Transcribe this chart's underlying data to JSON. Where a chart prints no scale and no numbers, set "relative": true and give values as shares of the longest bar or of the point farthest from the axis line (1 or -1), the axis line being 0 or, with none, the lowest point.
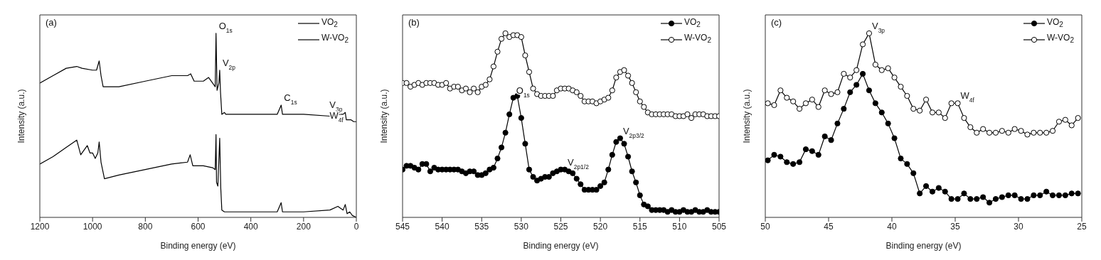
{
  "chart_data": [
    {
      "type": "line",
      "relative": true,
      "marker": "none",
      "legend": "top right",
      "xlabel": "Binding energy (eV)",
      "ylabel": "Intensity (a.u.)",
      "xlim": [
        1200,
        0
      ],
      "xticks": [
        1200,
        1000,
        800,
        600,
        400,
        200,
        0
      ],
      "annotations": [
        "(a)",
        {
          "text": "O$_{1s}$",
          "x": 532,
          "y": 1
        },
        {
          "text": "V$_{2p}$",
          "x": 518,
          "y": 0.8
        },
        {
          "text": "C$_{1s}$",
          "x": 285,
          "y": 0.61
        },
        {
          "text": "V$_{3p}$",
          "x": 42,
          "y": 0.57
        },
        {
          "text": "W$_{4f}$",
          "x": 38,
          "y": 0.53
        }
      ],
      "series": [
        {
          "name": "VO$_{2}$",
          "color": "#000000",
          "x": [
            1200,
            1150,
            1100,
            1060,
            1045,
            1020,
            1010,
            1000,
            990,
            980,
            975,
            968,
            955,
            900,
            800,
            700,
            640,
            630,
            620,
            580,
            545,
            535,
            532,
            530,
            525,
            518,
            514,
            510,
            500,
            400,
            300,
            285,
            280,
            200,
            100,
            70,
            50,
            42,
            35,
            25,
            15,
            0
          ],
          "values": [
            0.29,
            0.33,
            0.38,
            0.42,
            0.34,
            0.39,
            0.35,
            0.35,
            0.32,
            0.35,
            0.41,
            0.3,
            0.21,
            0.23,
            0.26,
            0.29,
            0.3,
            0.34,
            0.28,
            0.28,
            0.27,
            0.26,
            0.45,
            0.19,
            0.17,
            0.43,
            0.16,
            0.04,
            0.03,
            0.03,
            0.03,
            0.08,
            0.03,
            0.03,
            0.04,
            0.06,
            0.04,
            0.07,
            0.02,
            0.03,
            0.01,
            0.0
          ]
        },
        {
          "name": "W-VO$_{2}$",
          "color": "#000000",
          "x": [
            1200,
            1150,
            1100,
            1060,
            1040,
            1000,
            985,
            975,
            968,
            960,
            900,
            800,
            700,
            640,
            628,
            615,
            580,
            560,
            545,
            535,
            532,
            528,
            521,
            518,
            515,
            510,
            500,
            495,
            400,
            300,
            285,
            280,
            200,
            100,
            70,
            50,
            42,
            38,
            30,
            20,
            10,
            0
          ],
          "values": [
            0.73,
            0.77,
            0.81,
            0.82,
            0.81,
            0.8,
            0.8,
            0.85,
            0.77,
            0.71,
            0.71,
            0.74,
            0.77,
            0.77,
            0.78,
            0.74,
            0.74,
            0.76,
            0.73,
            0.71,
            1,
            0.69,
            0.73,
            0.8,
            0.68,
            0.56,
            0.57,
            0.56,
            0.56,
            0.56,
            0.61,
            0.56,
            0.56,
            0.55,
            0.56,
            0.56,
            0.57,
            0.53,
            0.53,
            0.53,
            0.52,
            0.52
          ]
        }
      ]
    },
    {
      "type": "line",
      "relative": true,
      "marker": "circle",
      "legend": "top right",
      "xlabel": "Binding energy (eV)",
      "ylabel": "Intensity (a.u.)",
      "xlim": [
        545,
        505
      ],
      "xticks": [
        545,
        540,
        535,
        530,
        525,
        520,
        515,
        510,
        505
      ],
      "annotations": [
        "(b)",
        {
          "text": "O$_{1s}$",
          "x": 531,
          "y": 0.65
        },
        {
          "text": "V$_{2p1/2}$",
          "x": 524.5,
          "y": 0.26
        },
        {
          "text": "V$_{2p3/2}$",
          "x": 517.5,
          "y": 0.43
        }
      ],
      "x": [
        545,
        544.5,
        544,
        543.5,
        543,
        542.5,
        542,
        541.5,
        541,
        540.5,
        540,
        539.5,
        539,
        538.5,
        538,
        537.5,
        537,
        536.5,
        536,
        535.5,
        535,
        534.5,
        534,
        533.5,
        533,
        532.5,
        532,
        531.5,
        531,
        530.5,
        530,
        529.5,
        529,
        528.5,
        528,
        527.5,
        527,
        526.5,
        526,
        525.5,
        525,
        524.5,
        524,
        523.5,
        523,
        522.5,
        522,
        521.5,
        521,
        520.5,
        520,
        519.5,
        519,
        518.5,
        518,
        517.5,
        517,
        516.5,
        516,
        515.5,
        515,
        514.5,
        514,
        513.5,
        513,
        512.5,
        512,
        511.5,
        511,
        510.5,
        510,
        509.5,
        509,
        508.5,
        508,
        507.5,
        507,
        506.5,
        506,
        505.5,
        505
      ],
      "series": [
        {
          "name": "VO$_{2}$",
          "color": "#000000",
          "values": [
            0.26,
            0.28,
            0.28,
            0.27,
            0.26,
            0.29,
            0.29,
            0.25,
            0.27,
            0.26,
            0.26,
            0.26,
            0.26,
            0.26,
            0.26,
            0.25,
            0.24,
            0.25,
            0.25,
            0.23,
            0.23,
            0.24,
            0.26,
            0.27,
            0.32,
            0.38,
            0.46,
            0.56,
            0.65,
            0.66,
            0.54,
            0.4,
            0.26,
            0.22,
            0.2,
            0.21,
            0.22,
            0.22,
            0.24,
            0.25,
            0.26,
            0.26,
            0.25,
            0.24,
            0.21,
            0.18,
            0.15,
            0.15,
            0.15,
            0.15,
            0.17,
            0.19,
            0.26,
            0.34,
            0.41,
            0.43,
            0.4,
            0.33,
            0.25,
            0.19,
            0.12,
            0.07,
            0.06,
            0.04,
            0.04,
            0.04,
            0.04,
            0.03,
            0.04,
            0.03,
            0.03,
            0.04,
            0.03,
            0.03,
            0.04,
            0.03,
            0.03,
            0.04,
            0.03,
            0.03,
            0.03
          ]
        },
        {
          "name": "W-VO$_{2}$",
          "color": "#000000",
          "values": [
            0.73,
            0.73,
            0.71,
            0.72,
            0.73,
            0.72,
            0.73,
            0.73,
            0.73,
            0.72,
            0.72,
            0.73,
            0.7,
            0.71,
            0.71,
            0.69,
            0.7,
            0.68,
            0.7,
            0.68,
            0.71,
            0.72,
            0.75,
            0.82,
            0.9,
            0.97,
            1,
            0.98,
            0.99,
            0.99,
            0.98,
            0.88,
            0.79,
            0.7,
            0.67,
            0.66,
            0.66,
            0.66,
            0.66,
            0.69,
            0.7,
            0.7,
            0.7,
            0.69,
            0.68,
            0.66,
            0.63,
            0.63,
            0.63,
            0.62,
            0.63,
            0.64,
            0.65,
            0.69,
            0.76,
            0.79,
            0.8,
            0.77,
            0.73,
            0.68,
            0.63,
            0.6,
            0.57,
            0.56,
            0.56,
            0.56,
            0.56,
            0.56,
            0.56,
            0.55,
            0.55,
            0.55,
            0.56,
            0.54,
            0.56,
            0.56,
            0.56,
            0.55,
            0.55,
            0.55,
            0.55
          ]
        }
      ]
    },
    {
      "type": "line",
      "relative": true,
      "marker": "circle",
      "legend": "top right",
      "xlabel": "Binding energy (eV)",
      "ylabel": "Intensity (a.u.)",
      "xlim": [
        50,
        25
      ],
      "xticks": [
        50,
        45,
        40,
        35,
        30,
        25
      ],
      "annotations": [
        "(c)",
        {
          "text": "V$_{3p}$",
          "x": 41.8,
          "y": 1
        },
        {
          "text": "W$_{4f}$",
          "x": 34.8,
          "y": 0.62
        }
      ],
      "x": [
        49.8,
        49.3,
        48.8,
        48.3,
        47.8,
        47.3,
        46.8,
        46.3,
        45.8,
        45.3,
        44.8,
        44.3,
        43.8,
        43.3,
        42.8,
        42.3,
        41.8,
        41.3,
        40.8,
        40.3,
        39.8,
        39.3,
        38.8,
        38.3,
        37.8,
        37.3,
        36.8,
        36.3,
        35.8,
        35.3,
        34.8,
        34.3,
        33.8,
        33.3,
        32.8,
        32.3,
        31.8,
        31.3,
        30.8,
        30.3,
        29.8,
        29.3,
        28.8,
        28.3,
        27.8,
        27.3,
        26.8,
        26.3,
        25.8,
        25.3
      ],
      "series": [
        {
          "name": "VO$_{2}$",
          "color": "#000000",
          "values": [
            0.31,
            0.34,
            0.33,
            0.3,
            0.29,
            0.3,
            0.37,
            0.36,
            0.34,
            0.44,
            0.42,
            0.51,
            0.59,
            0.68,
            0.72,
            0.78,
            0.69,
            0.62,
            0.57,
            0.51,
            0.43,
            0.32,
            0.29,
            0.24,
            0.13,
            0.17,
            0.14,
            0.16,
            0.14,
            0.1,
            0.1,
            0.13,
            0.1,
            0.1,
            0.11,
            0.08,
            0.1,
            0.11,
            0.12,
            0.12,
            0.1,
            0.1,
            0.12,
            0.12,
            0.14,
            0.12,
            0.12,
            0.12,
            0.13,
            0.13
          ]
        },
        {
          "name": "W-VO$_{2}$",
          "color": "#000000",
          "values": [
            0.62,
            0.61,
            0.69,
            0.65,
            0.63,
            0.59,
            0.62,
            0.64,
            0.6,
            0.69,
            0.67,
            0.68,
            0.78,
            0.76,
            0.8,
            0.94,
            1,
            0.83,
            0.8,
            0.81,
            0.76,
            0.71,
            0.66,
            0.59,
            0.58,
            0.64,
            0.57,
            0.57,
            0.54,
            0.62,
            0.62,
            0.54,
            0.49,
            0.46,
            0.48,
            0.46,
            0.46,
            0.47,
            0.46,
            0.48,
            0.47,
            0.45,
            0.46,
            0.46,
            0.46,
            0.47,
            0.52,
            0.53,
            0.5,
            0.54
          ]
        }
      ]
    }
  ]
}
